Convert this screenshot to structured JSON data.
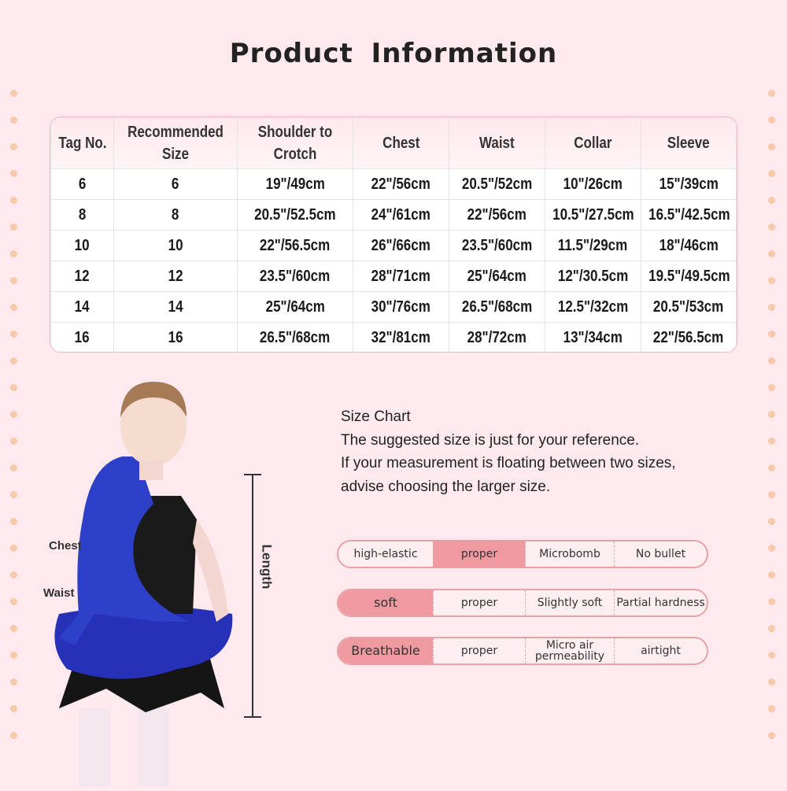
{
  "title": "Product  Information",
  "table": {
    "headers": [
      "Tag No.",
      "Recommended Size",
      "Shoulder to Crotch",
      "Chest",
      "Waist",
      "Collar",
      "Sleeve"
    ],
    "rows": [
      [
        "6",
        "6",
        "19\"/49cm",
        "22\"/56cm",
        "20.5\"/52cm",
        "10\"/26cm",
        "15\"/39cm"
      ],
      [
        "8",
        "8",
        "20.5\"/52.5cm",
        "24\"/61cm",
        "22\"/56cm",
        "10.5\"/27.5cm",
        "16.5\"/42.5cm"
      ],
      [
        "10",
        "10",
        "22\"/56.5cm",
        "26\"/66cm",
        "23.5\"/60cm",
        "11.5\"/29cm",
        "18\"/46cm"
      ],
      [
        "12",
        "12",
        "23.5\"/60cm",
        "28\"/71cm",
        "25\"/64cm",
        "12\"/30.5cm",
        "19.5\"/49.5cm"
      ],
      [
        "14",
        "14",
        "25\"/64cm",
        "30\"/76cm",
        "26.5\"/68cm",
        "12.5\"/32cm",
        "20.5\"/53cm"
      ],
      [
        "16",
        "16",
        "26.5\"/68cm",
        "32\"/81cm",
        "28\"/72cm",
        "13\"/34cm",
        "22\"/56.5cm"
      ]
    ]
  },
  "info": {
    "heading": "Size Chart",
    "line1": "The suggested size is just for your reference.",
    "line2": "If your measurement is floating between two sizes,",
    "line3": "advise choosing the larger size."
  },
  "figure": {
    "chest_label": "Chest",
    "waist_label": "Waist",
    "length_label": "Length"
  },
  "scales": [
    {
      "options": [
        "high-elastic",
        "proper",
        "Microbomb",
        "No bullet"
      ],
      "selected": 1
    },
    {
      "options": [
        "soft",
        "proper",
        "Slightly soft",
        "Partial hardness"
      ],
      "selected": 0
    },
    {
      "options": [
        "Breathable",
        "proper",
        "Micro air permeability",
        "airtight"
      ],
      "selected": 0
    }
  ],
  "colors": {
    "background": "#fde9ee",
    "highlight": "#ee9aa0",
    "border": "#e9a3a8",
    "dots": "#f6c9a9"
  }
}
